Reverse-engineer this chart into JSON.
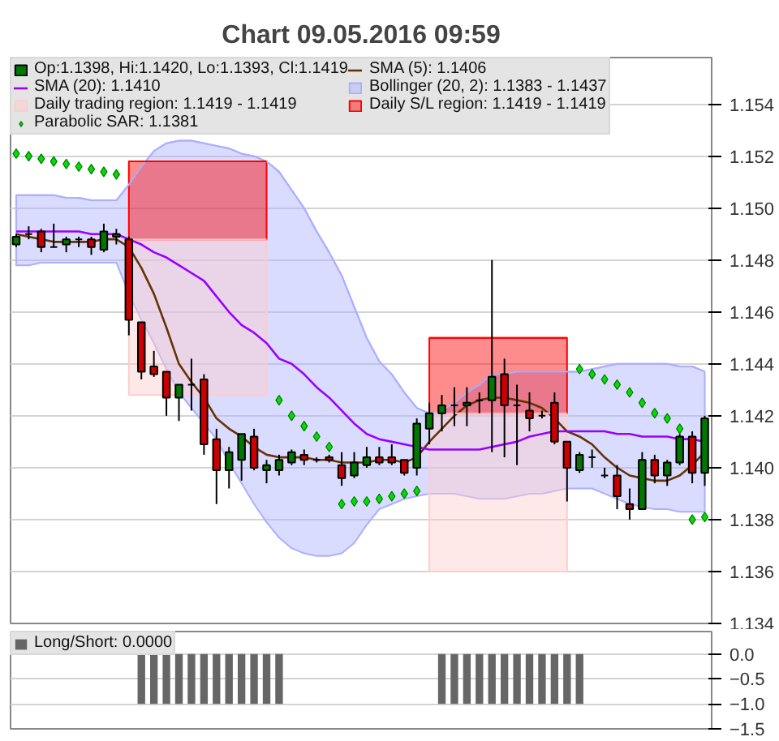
{
  "chart_data": [
    {
      "type": "candlestick",
      "title": "Chart 09.05.2016 09:59",
      "categories": [
        null,
        null,
        null,
        null,
        null,
        null,
        null,
        null,
        null,
        null,
        null,
        null,
        null,
        null,
        null,
        null,
        null,
        null,
        null,
        null,
        null,
        null,
        null,
        null,
        null,
        null,
        null,
        null,
        null,
        null,
        null,
        null,
        null,
        null,
        null,
        null,
        null,
        null,
        null,
        null,
        null,
        null,
        null,
        null,
        null,
        null,
        null,
        null,
        null,
        null,
        null,
        null,
        null,
        null,
        null,
        null
      ],
      "ylim": [
        1.134,
        1.1558
      ],
      "yticks": [
        1.134,
        1.136,
        1.138,
        {
          "value": 1.14,
          "label": "1.140"
        },
        1.142,
        1.144,
        1.146,
        1.148,
        {
          "value": 1.15,
          "label": "1.150"
        },
        1.152,
        1.154
      ],
      "grid": "y",
      "legend": "top left",
      "tick_labels": "y",
      "series": [
        {
          "name": "Op:1.1398, Hi:1.1420, Lo:1.1393, Cl:1.1419",
          "type": "candlestick",
          "color": "#007700",
          "ohlc": [
            [
              1.1486,
              1.149,
              1.1485,
              1.1489
            ],
            [
              1.149,
              1.1493,
              1.1488,
              1.149
            ],
            [
              1.1491,
              1.1492,
              1.1483,
              1.1485
            ],
            [
              1.1485,
              1.1494,
              1.1485,
              1.1485
            ],
            [
              1.1486,
              1.1489,
              1.1483,
              1.1488
            ],
            [
              1.1488,
              1.1489,
              1.1485,
              1.1488
            ],
            [
              1.1488,
              1.1489,
              1.1482,
              1.1485
            ],
            [
              1.1484,
              1.1494,
              1.1483,
              1.1491
            ],
            [
              1.149,
              1.1492,
              1.1486,
              1.1489
            ],
            [
              1.1488,
              1.1489,
              1.1451,
              1.1457
            ],
            [
              1.1456,
              1.1456,
              1.1434,
              1.1437
            ],
            [
              1.1439,
              1.1445,
              1.1435,
              1.1436
            ],
            [
              1.1437,
              1.1437,
              1.142,
              1.1427
            ],
            [
              1.1427,
              1.1432,
              1.1418,
              1.1432
            ],
            [
              1.1432,
              1.1442,
              1.1422,
              1.1432
            ],
            [
              1.1434,
              1.1436,
              1.1405,
              1.1409
            ],
            [
              1.1411,
              1.1415,
              1.1386,
              1.1399
            ],
            [
              1.1399,
              1.1408,
              1.1392,
              1.1406
            ],
            [
              1.1403,
              1.1413,
              1.1395,
              1.1413
            ],
            [
              1.1412,
              1.1415,
              1.1399,
              1.14
            ],
            [
              1.1399,
              1.1403,
              1.1394,
              1.1401
            ],
            [
              1.1399,
              1.1405,
              1.1397,
              1.1403
            ],
            [
              1.1402,
              1.1407,
              1.1401,
              1.1406
            ],
            [
              1.1405,
              1.1407,
              1.1401,
              1.1403
            ],
            [
              1.1403,
              1.1404,
              1.1402,
              1.1403
            ],
            [
              1.1404,
              1.1405,
              1.1402,
              1.1403
            ],
            [
              1.1401,
              1.1406,
              1.1393,
              1.1396
            ],
            [
              1.1397,
              1.1406,
              1.1396,
              1.1402
            ],
            [
              1.1401,
              1.1408,
              1.14,
              1.1404
            ],
            [
              1.1404,
              1.1408,
              1.1401,
              1.1402
            ],
            [
              1.1404,
              1.1409,
              1.1401,
              1.1402
            ],
            [
              1.1403,
              1.1403,
              1.1397,
              1.1398
            ],
            [
              1.14,
              1.1419,
              1.1397,
              1.1417
            ],
            [
              1.1415,
              1.1425,
              1.1409,
              1.1421
            ],
            [
              1.1421,
              1.1428,
              1.1414,
              1.1424
            ],
            [
              1.1424,
              1.1431,
              1.1416,
              1.1424
            ],
            [
              1.1424,
              1.1431,
              1.1416,
              1.1425
            ],
            [
              1.1426,
              1.1429,
              1.1421,
              1.1426
            ],
            [
              1.1426,
              1.148,
              1.1406,
              1.1435
            ],
            [
              1.1436,
              1.1442,
              1.1404,
              1.1424
            ],
            [
              1.1424,
              1.1432,
              1.1401,
              1.1424
            ],
            [
              1.1422,
              1.1429,
              1.1414,
              1.1419
            ],
            [
              1.142,
              1.1422,
              1.1419,
              1.142
            ],
            [
              1.1425,
              1.1429,
              1.1409,
              1.141
            ],
            [
              1.141,
              1.141,
              1.1387,
              1.14
            ],
            [
              1.1399,
              1.1406,
              1.1398,
              1.1405
            ],
            [
              1.1404,
              1.1407,
              1.14,
              1.1404
            ],
            [
              1.1397,
              1.14,
              1.1396,
              1.1397
            ],
            [
              1.1397,
              1.1401,
              1.1384,
              1.1389
            ],
            [
              1.1386,
              1.1392,
              1.138,
              1.1384
            ],
            [
              1.1384,
              1.1406,
              1.1384,
              1.1403
            ],
            [
              1.1403,
              1.1405,
              1.1394,
              1.1397
            ],
            [
              1.1397,
              1.1403,
              1.1393,
              1.1402
            ],
            [
              1.1402,
              1.1413,
              1.1401,
              1.1412
            ],
            [
              1.1412,
              1.1414,
              1.1394,
              1.1398
            ],
            [
              1.1398,
              1.142,
              1.1393,
              1.1419
            ]
          ],
          "colors": [
            "#007700",
            "#000000",
            "#cc0000",
            "#000000",
            "#007700",
            "#000000",
            "#cc0000",
            "#007700",
            "#cc0000",
            "#cc0000",
            "#cc0000",
            "#cc0000",
            "#cc0000",
            "#007700",
            "#000000",
            "#cc0000",
            "#cc0000",
            "#007700",
            "#007700",
            "#cc0000",
            "#007700",
            "#007700",
            "#007700",
            "#cc0000",
            "#000000",
            "#cc0000",
            "#cc0000",
            "#007700",
            "#007700",
            "#cc0000",
            "#cc0000",
            "#cc0000",
            "#007700",
            "#007700",
            "#007700",
            "#000000",
            "#007700",
            "#000000",
            "#007700",
            "#cc0000",
            "#000000",
            "#cc0000",
            "#000000",
            "#cc0000",
            "#cc0000",
            "#007700",
            "#000000",
            "#000000",
            "#cc0000",
            "#cc0000",
            "#007700",
            "#cc0000",
            "#007700",
            "#007700",
            "#cc0000",
            "#007700"
          ]
        },
        {
          "name": "SMA (5): 1.1406",
          "type": "line",
          "color": "#663300",
          "values": [
            1.149,
            1.1489,
            1.1488,
            1.1487,
            1.1487,
            1.1487,
            1.1487,
            1.1488,
            1.1488,
            1.1485,
            1.1477,
            1.1467,
            1.1454,
            1.144,
            1.1433,
            1.1427,
            1.1419,
            1.1415,
            1.1412,
            1.1408,
            1.1405,
            1.1404,
            1.1404,
            1.1404,
            1.1403,
            1.1403,
            1.1402,
            1.1402,
            1.1402,
            1.1403,
            1.1403,
            1.1402,
            1.1404,
            1.141,
            1.1415,
            1.142,
            1.1424,
            1.1426,
            1.1427,
            1.1427,
            1.1426,
            1.1425,
            1.1423,
            1.1419,
            1.1414,
            1.1412,
            1.1409,
            1.1404,
            1.14,
            1.1397,
            1.1396,
            1.1395,
            1.1395,
            1.1397,
            1.1401,
            1.1406
          ]
        },
        {
          "name": "SMA (20): 1.1410",
          "type": "line",
          "color": "#9900ff",
          "values": [
            1.1491,
            1.1491,
            1.1491,
            1.1491,
            1.1491,
            1.1491,
            1.149,
            1.149,
            1.149,
            1.1488,
            1.1486,
            1.1483,
            1.1481,
            1.1478,
            1.1475,
            1.1472,
            1.1466,
            1.146,
            1.1455,
            1.1452,
            1.1448,
            1.1442,
            1.144,
            1.1436,
            1.1431,
            1.1427,
            1.1422,
            1.1417,
            1.1413,
            1.1411,
            1.141,
            1.1409,
            1.1408,
            1.1407,
            1.1407,
            1.1407,
            1.1407,
            1.1407,
            1.1408,
            1.1409,
            1.141,
            1.1412,
            1.1413,
            1.1414,
            1.1414,
            1.1414,
            1.1414,
            1.1414,
            1.1413,
            1.1413,
            1.1412,
            1.1412,
            1.1412,
            1.1411,
            1.1411,
            1.141
          ]
        },
        {
          "name": "Bollinger (20, 2): 1.1383 - 1.1437",
          "type": "line",
          "color": "#aab0ff",
          "values": [
            1.1505,
            1.1505,
            1.1505,
            1.1505,
            1.1504,
            1.1504,
            1.1503,
            1.1503,
            1.1503,
            1.1509,
            1.1516,
            1.1522,
            1.1525,
            1.1526,
            1.1526,
            1.1525,
            1.1524,
            1.1523,
            1.1521,
            1.152,
            1.1518,
            1.1514,
            1.1507,
            1.15,
            1.1491,
            1.1483,
            1.1474,
            1.1462,
            1.145,
            1.1441,
            1.1436,
            1.1429,
            1.1423,
            1.1421,
            1.1422,
            1.1425,
            1.1429,
            1.1432,
            1.1436,
            1.1436,
            1.1437,
            1.1437,
            1.1437,
            1.1437,
            1.1437,
            1.1437,
            1.1438,
            1.1439,
            1.144,
            1.144,
            1.144,
            1.144,
            1.144,
            1.1439,
            1.1439,
            1.1437
          ],
          "upper": [
            1.1505,
            1.1505,
            1.1505,
            1.1505,
            1.1504,
            1.1504,
            1.1503,
            1.1503,
            1.1503,
            1.1509,
            1.1516,
            1.1522,
            1.1525,
            1.1526,
            1.1526,
            1.1525,
            1.1524,
            1.1523,
            1.1521,
            1.152,
            1.1518,
            1.1514,
            1.1507,
            1.15,
            1.1491,
            1.1483,
            1.1474,
            1.1462,
            1.145,
            1.1441,
            1.1436,
            1.1429,
            1.1423,
            1.1421,
            1.1422,
            1.1425,
            1.1429,
            1.1432,
            1.1436,
            1.1436,
            1.1437,
            1.1437,
            1.1437,
            1.1437,
            1.1437,
            1.1437,
            1.1438,
            1.1439,
            1.144,
            1.144,
            1.144,
            1.144,
            1.144,
            1.1439,
            1.1439,
            1.1437
          ],
          "lower": [
            1.1478,
            1.1478,
            1.1479,
            1.1479,
            1.1479,
            1.1479,
            1.1479,
            1.1479,
            1.1479,
            1.1467,
            1.1457,
            1.1448,
            1.1438,
            1.1429,
            1.1423,
            1.1417,
            1.1411,
            1.1402,
            1.1394,
            1.1386,
            1.1379,
            1.1373,
            1.1369,
            1.1367,
            1.1366,
            1.1366,
            1.1367,
            1.1371,
            1.1378,
            1.1384,
            1.1386,
            1.1388,
            1.1389,
            1.139,
            1.139,
            1.139,
            1.1389,
            1.1388,
            1.1388,
            1.1388,
            1.1389,
            1.139,
            1.139,
            1.1391,
            1.1392,
            1.1392,
            1.1392,
            1.139,
            1.1388,
            1.1386,
            1.1385,
            1.1384,
            1.1384,
            1.1383,
            1.1383,
            1.1383
          ]
        },
        {
          "name": "Daily trading region: 1.1419 - 1.1419",
          "type": "line",
          "color": "#ffcccc",
          "values": [
            null,
            null,
            null,
            null,
            null,
            null,
            null,
            null,
            null,
            1.1488,
            1.1488,
            1.1488,
            1.1488,
            1.1488,
            1.1488,
            1.1488,
            1.1488,
            1.1488,
            1.1488,
            1.1488,
            1.1488,
            null,
            null,
            null,
            null,
            null,
            null,
            null,
            null,
            null,
            null,
            null,
            null,
            1.1421,
            1.1421,
            1.1421,
            1.1421,
            1.1421,
            1.1421,
            1.1421,
            1.1421,
            1.1421,
            1.1421,
            1.1421,
            1.1421,
            null,
            null,
            null,
            null,
            null,
            null,
            null,
            null,
            null,
            null,
            null
          ],
          "upper": [
            null,
            null,
            null,
            null,
            null,
            null,
            null,
            null,
            null,
            1.1488,
            1.1488,
            1.1488,
            1.1488,
            1.1488,
            1.1488,
            1.1488,
            1.1488,
            1.1488,
            1.1488,
            1.1488,
            1.1488,
            null,
            null,
            null,
            null,
            null,
            null,
            null,
            null,
            null,
            null,
            null,
            null,
            1.1421,
            1.1421,
            1.1421,
            1.1421,
            1.1421,
            1.1421,
            1.1421,
            1.1421,
            1.1421,
            1.1421,
            1.1421,
            1.1421,
            null,
            null,
            null,
            null,
            null,
            null,
            null,
            null,
            null,
            null,
            null
          ],
          "lower": [
            null,
            null,
            null,
            null,
            null,
            null,
            null,
            null,
            null,
            1.1428,
            1.1428,
            1.1428,
            1.1428,
            1.1428,
            1.1428,
            1.1428,
            1.1428,
            1.1428,
            1.1428,
            1.1428,
            1.1428,
            null,
            null,
            null,
            null,
            null,
            null,
            null,
            null,
            null,
            null,
            null,
            null,
            1.136,
            1.136,
            1.136,
            1.136,
            1.136,
            1.136,
            1.136,
            1.136,
            1.136,
            1.136,
            1.136,
            1.136,
            null,
            null,
            null,
            null,
            null,
            null,
            null,
            null,
            null,
            null,
            null
          ]
        },
        {
          "name": "Daily S/L region: 1.1419 - 1.1419",
          "type": "line",
          "color": "#ff0000",
          "values": [
            null,
            null,
            null,
            null,
            null,
            null,
            null,
            null,
            null,
            1.1518,
            1.1518,
            1.1518,
            1.1518,
            1.1518,
            1.1518,
            1.1518,
            1.1518,
            1.1518,
            1.1518,
            1.1518,
            1.1518,
            null,
            null,
            null,
            null,
            null,
            null,
            null,
            null,
            null,
            null,
            null,
            null,
            1.145,
            1.145,
            1.145,
            1.145,
            1.145,
            1.145,
            1.145,
            1.145,
            1.145,
            1.145,
            1.145,
            1.145,
            null,
            null,
            null,
            null,
            null,
            null,
            null,
            null,
            null,
            null,
            null
          ],
          "upper": [
            null,
            null,
            null,
            null,
            null,
            null,
            null,
            null,
            null,
            1.1518,
            1.1518,
            1.1518,
            1.1518,
            1.1518,
            1.1518,
            1.1518,
            1.1518,
            1.1518,
            1.1518,
            1.1518,
            1.1518,
            null,
            null,
            null,
            null,
            null,
            null,
            null,
            null,
            null,
            null,
            null,
            null,
            1.145,
            1.145,
            1.145,
            1.145,
            1.145,
            1.145,
            1.145,
            1.145,
            1.145,
            1.145,
            1.145,
            1.145,
            null,
            null,
            null,
            null,
            null,
            null,
            null,
            null,
            null,
            null,
            null
          ],
          "lower": [
            null,
            null,
            null,
            null,
            null,
            null,
            null,
            null,
            null,
            1.1488,
            1.1488,
            1.1488,
            1.1488,
            1.1488,
            1.1488,
            1.1488,
            1.1488,
            1.1488,
            1.1488,
            1.1488,
            1.1488,
            null,
            null,
            null,
            null,
            null,
            null,
            null,
            null,
            null,
            null,
            null,
            null,
            1.1421,
            1.1421,
            1.1421,
            1.1421,
            1.1421,
            1.1421,
            1.1421,
            1.1421,
            1.1421,
            1.1421,
            1.1421,
            1.1421,
            null,
            null,
            null,
            null,
            null,
            null,
            null,
            null,
            null,
            null,
            null
          ]
        },
        {
          "name": "Parabolic SAR: 1.1381",
          "type": "scatter",
          "color": "#00dd00",
          "marker": "diamond",
          "values": [
            1.1521,
            1.152,
            1.1519,
            1.1518,
            1.1517,
            1.1516,
            1.1515,
            1.1514,
            1.1513,
            null,
            null,
            null,
            null,
            null,
            null,
            null,
            null,
            null,
            null,
            null,
            null,
            1.1426,
            1.142,
            1.1416,
            1.1412,
            1.1408,
            1.1386,
            1.1387,
            1.1387,
            1.1388,
            1.1389,
            1.139,
            1.1391,
            null,
            null,
            null,
            null,
            null,
            null,
            null,
            null,
            null,
            null,
            null,
            null,
            1.1438,
            1.1436,
            1.1434,
            1.1432,
            1.1429,
            1.1425,
            1.1421,
            1.1419,
            1.1415,
            1.138,
            1.1381
          ]
        }
      ]
    },
    {
      "type": "bar",
      "categories": [
        null,
        null,
        null,
        null,
        null,
        null,
        null,
        null,
        null,
        null,
        null,
        null,
        null,
        null,
        null,
        null,
        null,
        null,
        null,
        null,
        null,
        null,
        null,
        null,
        null,
        null,
        null,
        null,
        null,
        null,
        null,
        null,
        null,
        null,
        null,
        null,
        null,
        null,
        null,
        null,
        null,
        null,
        null,
        null,
        null,
        null,
        null,
        null,
        null,
        null,
        null,
        null,
        null,
        null,
        null,
        null
      ],
      "ylim": [
        -1.5,
        0.45
      ],
      "yticks": [
        {
          "value": 0,
          "label": "0.0"
        },
        {
          "value": -0.5,
          "label": "−0.5"
        },
        {
          "value": -1,
          "label": "−1.0"
        },
        {
          "value": -1.5,
          "label": "−1.5"
        }
      ],
      "grid": "y",
      "legend": "top left",
      "tick_labels": "y",
      "series": [
        {
          "name": "Long/Short: 0.0000",
          "color": "#666666",
          "values": [
            0,
            0,
            0,
            0,
            0,
            0,
            0,
            0,
            0,
            0,
            -1,
            -1,
            -1,
            -1,
            -1,
            -1,
            -1,
            -1,
            -1,
            -1,
            -1,
            -1,
            0,
            0,
            0,
            0,
            0,
            0,
            0,
            0,
            0,
            0,
            0,
            0,
            -1,
            -1,
            -1,
            -1,
            -1,
            -1,
            -1,
            -1,
            -1,
            -1,
            -1,
            -1,
            0,
            0,
            0,
            0,
            0,
            0,
            0,
            0,
            0,
            0
          ]
        }
      ]
    }
  ]
}
